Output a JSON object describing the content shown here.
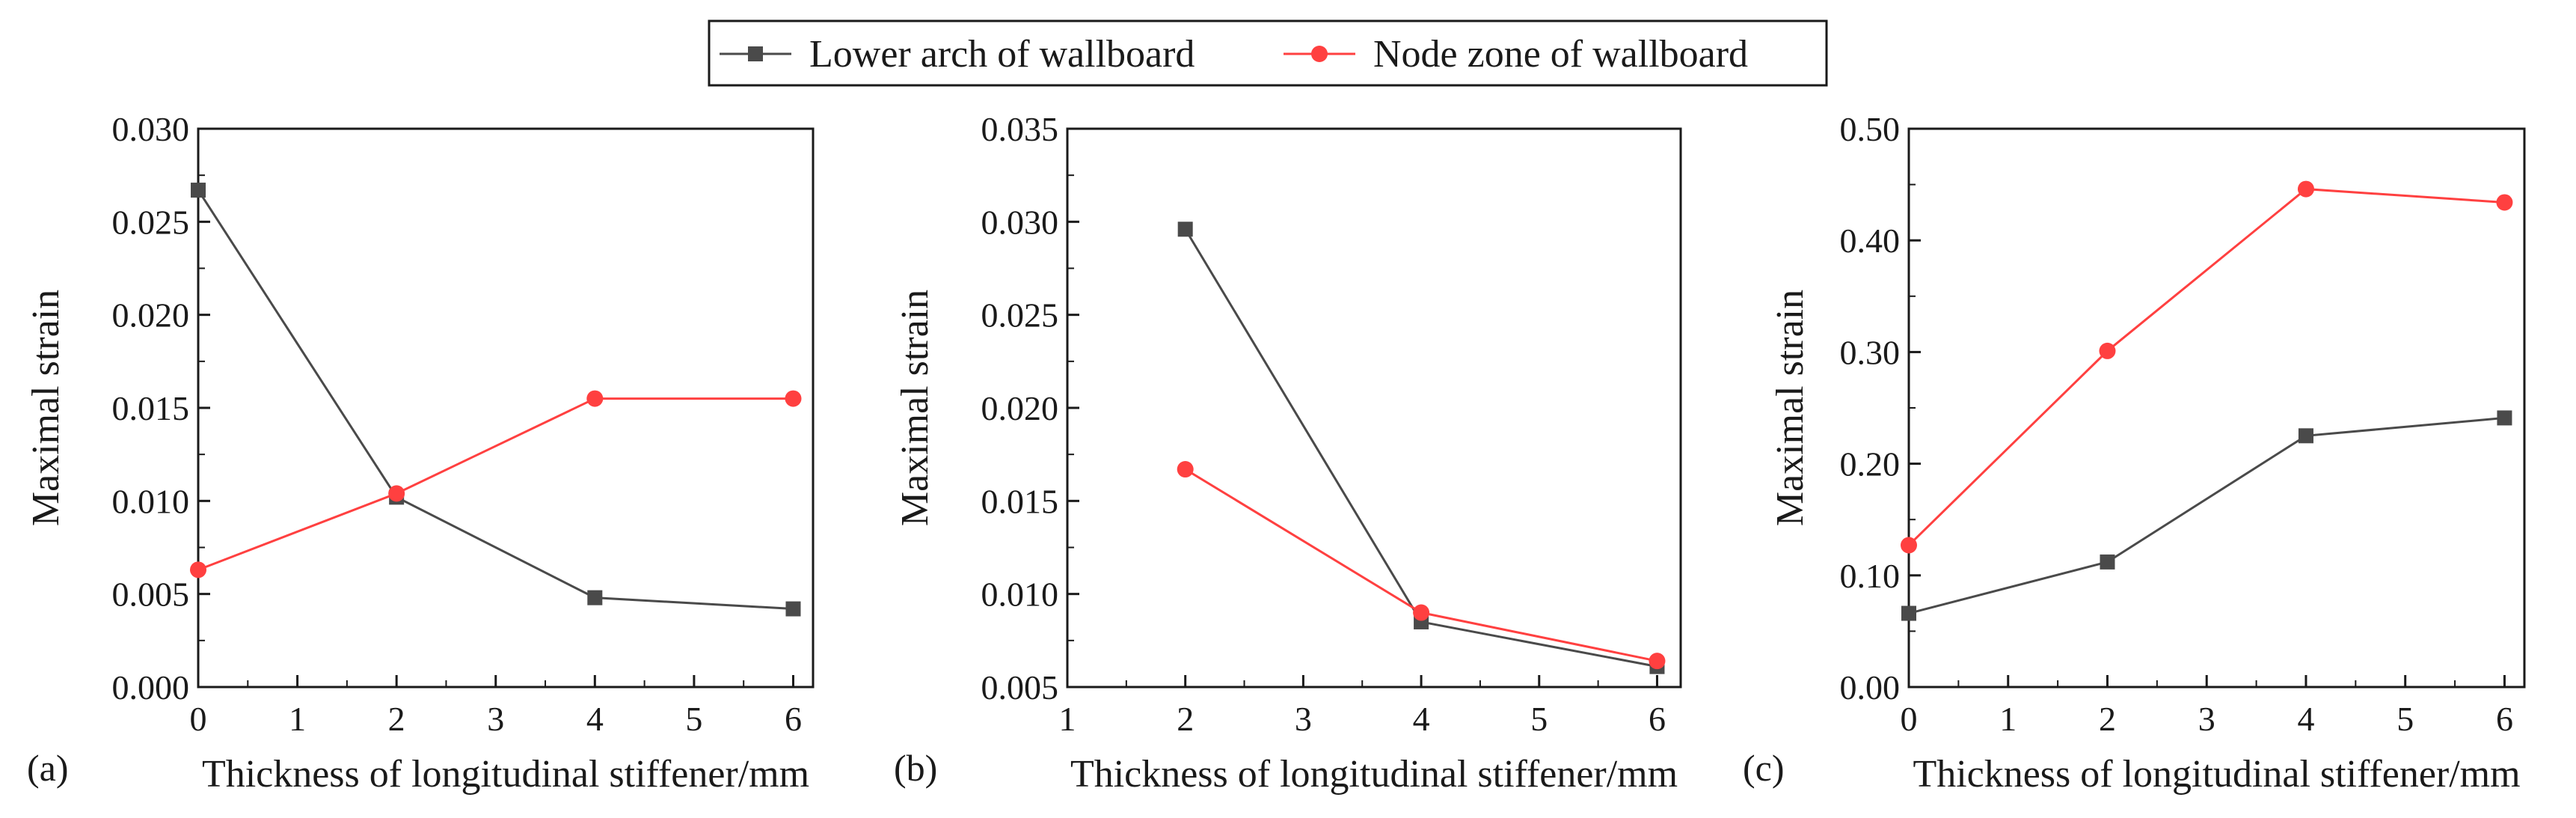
{
  "legend": {
    "series": [
      {
        "name": "Lower arch of wallboard",
        "marker": "square",
        "color": "#4a4a4a"
      },
      {
        "name": "Node zone of wallboard",
        "marker": "circle",
        "color": "#ff4040"
      }
    ]
  },
  "chart_data": [
    {
      "id": "a",
      "type": "line",
      "panel_label": "(a)",
      "xlabel": "Thickness of longitudinal stiffener/mm",
      "ylabel": "Maximal strain",
      "xlim": [
        0,
        6.2
      ],
      "ylim": [
        0,
        0.03
      ],
      "xticks": [
        0,
        1,
        2,
        3,
        4,
        5,
        6
      ],
      "xtick_labels": [
        "0",
        "1",
        "2",
        "3",
        "4",
        "5",
        "6"
      ],
      "yticks": [
        0,
        0.005,
        0.01,
        0.015,
        0.02,
        0.025,
        0.03
      ],
      "ytick_labels": [
        "0.000",
        "0.005",
        "0.010",
        "0.015",
        "0.020",
        "0.025",
        "0.030"
      ],
      "series": [
        {
          "name": "Lower arch of wallboard",
          "x": [
            0,
            2,
            4,
            6
          ],
          "y": [
            0.0267,
            0.0102,
            0.0048,
            0.0042
          ]
        },
        {
          "name": "Node zone of wallboard",
          "x": [
            0,
            2,
            4,
            6
          ],
          "y": [
            0.0063,
            0.0104,
            0.0155,
            0.0155
          ]
        }
      ]
    },
    {
      "id": "b",
      "type": "line",
      "panel_label": "(b)",
      "xlabel": "Thickness of longitudinal stiffener/mm",
      "ylabel": "Maximal strain",
      "xlim": [
        1,
        6.2
      ],
      "ylim": [
        0.005,
        0.035
      ],
      "xticks": [
        1,
        2,
        3,
        4,
        5,
        6
      ],
      "xtick_labels": [
        "1",
        "2",
        "3",
        "4",
        "5",
        "6"
      ],
      "yticks": [
        0.005,
        0.01,
        0.015,
        0.02,
        0.025,
        0.03,
        0.035
      ],
      "ytick_labels": [
        "0.005",
        "0.010",
        "0.015",
        "0.020",
        "0.025",
        "0.030",
        "0.035"
      ],
      "series": [
        {
          "name": "Lower arch of wallboard",
          "x": [
            2,
            4,
            6
          ],
          "y": [
            0.0296,
            0.0085,
            0.0061
          ]
        },
        {
          "name": "Node zone of wallboard",
          "x": [
            2,
            4,
            6
          ],
          "y": [
            0.0167,
            0.009,
            0.0064
          ]
        }
      ]
    },
    {
      "id": "c",
      "type": "line",
      "panel_label": "(c)",
      "xlabel": "Thickness of longitudinal stiffener/mm",
      "ylabel": "Maximal strain",
      "xlim": [
        0,
        6.2
      ],
      "ylim": [
        0,
        0.5
      ],
      "xticks": [
        0,
        1,
        2,
        3,
        4,
        5,
        6
      ],
      "xtick_labels": [
        "0",
        "1",
        "2",
        "3",
        "4",
        "5",
        "6"
      ],
      "yticks": [
        0,
        0.1,
        0.2,
        0.3,
        0.4,
        0.5
      ],
      "ytick_labels": [
        "0.00",
        "0.10",
        "0.20",
        "0.30",
        "0.40",
        "0.50"
      ],
      "series": [
        {
          "name": "Lower arch of wallboard",
          "x": [
            0,
            2,
            4,
            6
          ],
          "y": [
            0.066,
            0.112,
            0.225,
            0.241
          ]
        },
        {
          "name": "Node zone of wallboard",
          "x": [
            0,
            2,
            4,
            6
          ],
          "y": [
            0.127,
            0.301,
            0.446,
            0.434
          ]
        }
      ]
    }
  ]
}
